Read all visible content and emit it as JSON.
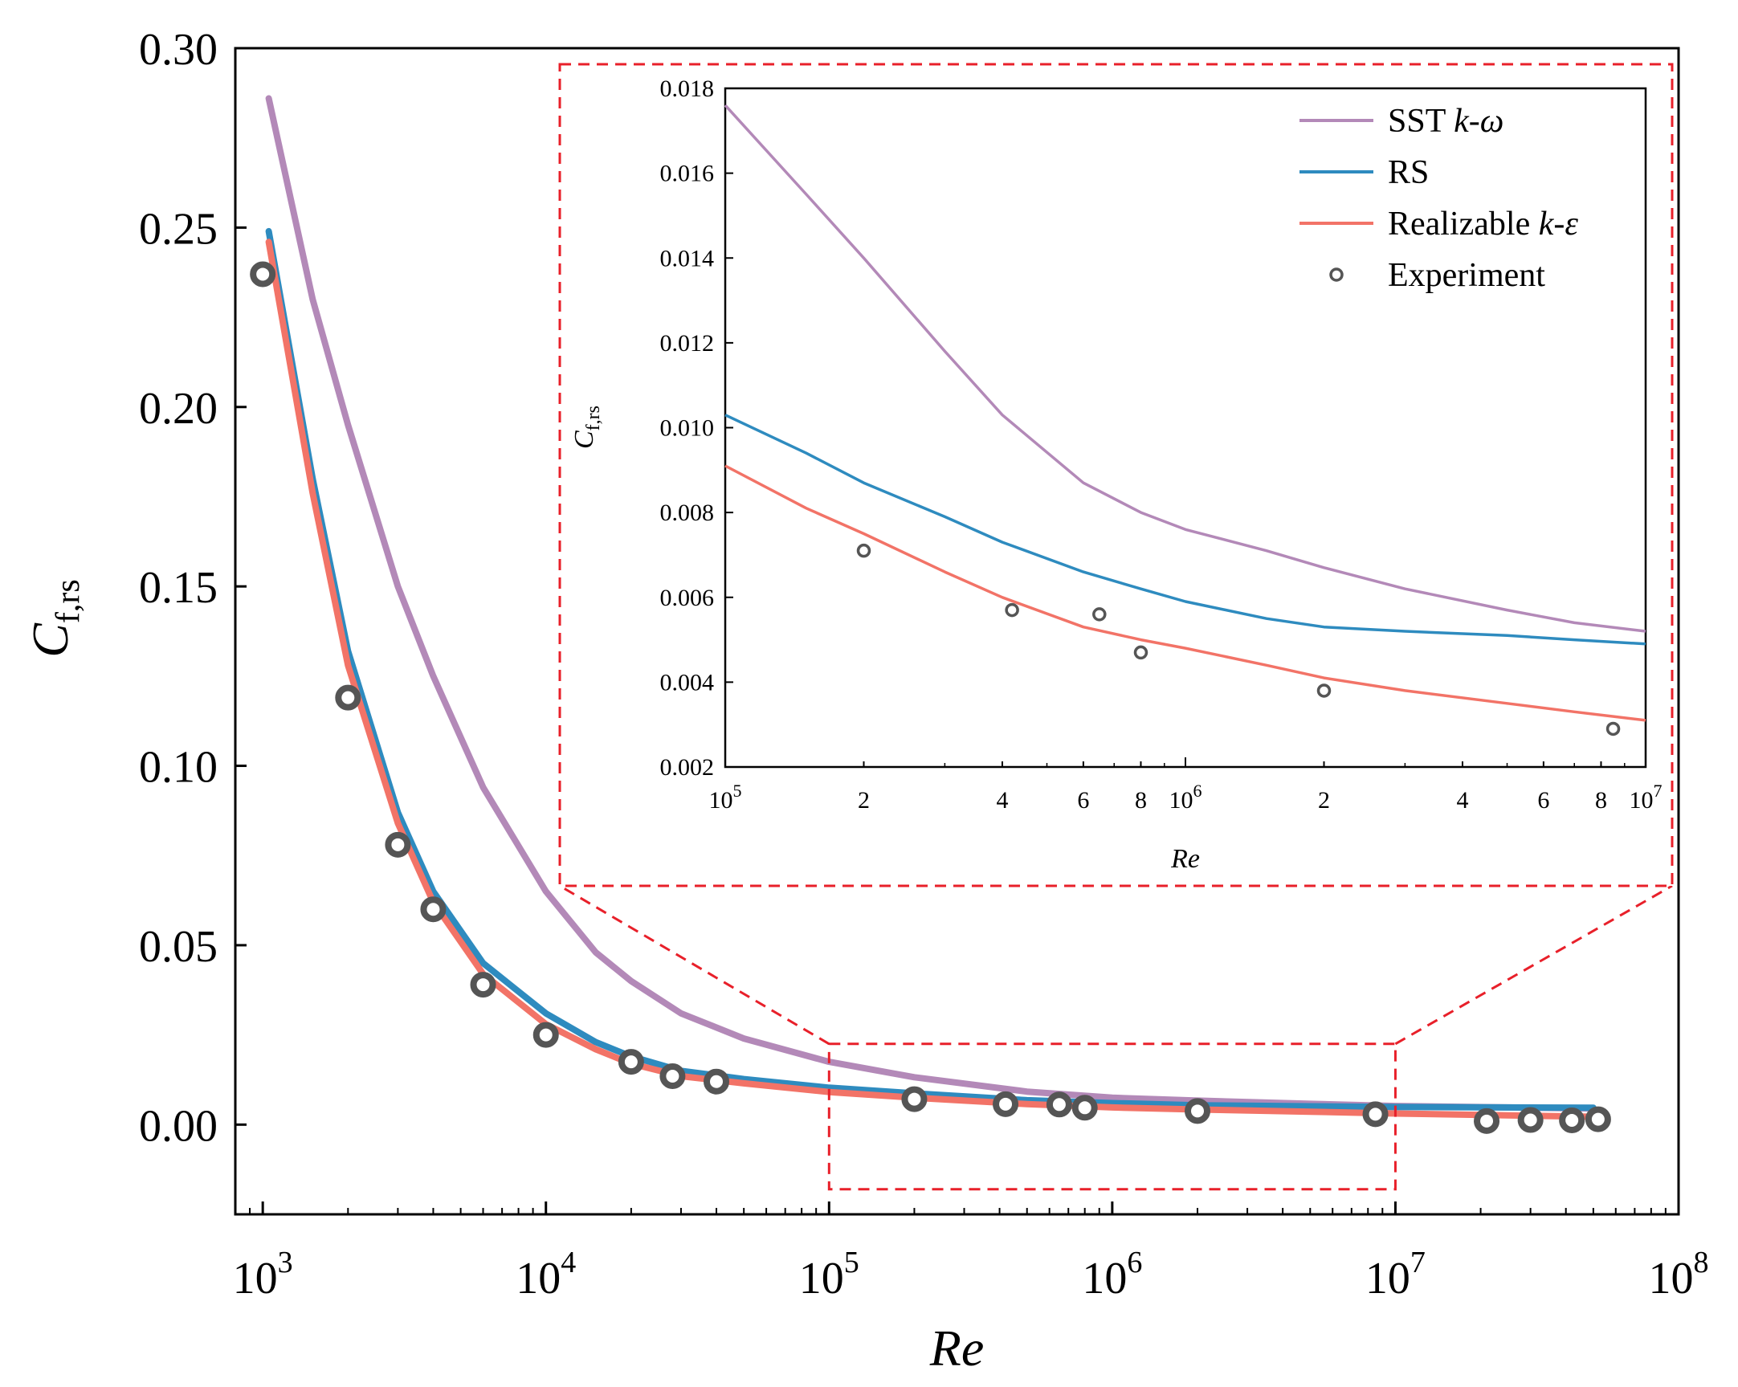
{
  "chart_data": {
    "type": "line",
    "x_scale": "log",
    "xlabel": "Re",
    "ylabel": {
      "main": "C",
      "sub": "f,rs"
    },
    "xlim": [
      800,
      100000000
    ],
    "ylim": [
      -0.025,
      0.3
    ],
    "x_ticks": [
      {
        "base": "10",
        "exp": "3",
        "value": 1000
      },
      {
        "base": "10",
        "exp": "4",
        "value": 10000
      },
      {
        "base": "10",
        "exp": "5",
        "value": 100000
      },
      {
        "base": "10",
        "exp": "6",
        "value": 1000000
      },
      {
        "base": "10",
        "exp": "7",
        "value": 10000000
      },
      {
        "base": "10",
        "exp": "8",
        "value": 100000000
      }
    ],
    "y_ticks": [
      "0.00",
      "0.05",
      "0.10",
      "0.15",
      "0.20",
      "0.25",
      "0.30"
    ],
    "series": [
      {
        "name": "SST k-ω",
        "name_parts": [
          "SST ",
          "k-ω"
        ],
        "color": "#b389b8",
        "kind": "line",
        "x": [
          1050,
          1500,
          2000,
          3000,
          4000,
          6000,
          10000,
          15000,
          20000,
          30000,
          50000,
          100000,
          200000,
          500000,
          1000000,
          2000000,
          5000000,
          10000000,
          50000000
        ],
        "y": [
          0.286,
          0.23,
          0.195,
          0.15,
          0.125,
          0.094,
          0.065,
          0.048,
          0.04,
          0.031,
          0.024,
          0.0175,
          0.0132,
          0.0092,
          0.0075,
          0.0067,
          0.0058,
          0.0052,
          0.0045
        ]
      },
      {
        "name": "RS",
        "color": "#2e8bbf",
        "kind": "line",
        "x": [
          1050,
          1500,
          2000,
          3000,
          4000,
          6000,
          10000,
          15000,
          20000,
          30000,
          50000,
          100000,
          200000,
          500000,
          1000000,
          2000000,
          5000000,
          10000000,
          50000000
        ],
        "y": [
          0.249,
          0.18,
          0.132,
          0.087,
          0.065,
          0.045,
          0.031,
          0.023,
          0.019,
          0.015,
          0.0127,
          0.0103,
          0.0087,
          0.0068,
          0.006,
          0.0054,
          0.0051,
          0.0049,
          0.0047
        ]
      },
      {
        "name": "Realizable k-ε",
        "name_parts": [
          "Realizable ",
          "k-ε"
        ],
        "color": "#f27367",
        "kind": "line",
        "x": [
          1050,
          1500,
          2000,
          3000,
          4000,
          6000,
          10000,
          15000,
          20000,
          30000,
          50000,
          100000,
          200000,
          500000,
          1000000,
          2000000,
          5000000,
          10000000,
          50000000
        ],
        "y": [
          0.246,
          0.176,
          0.128,
          0.084,
          0.062,
          0.042,
          0.028,
          0.021,
          0.017,
          0.0135,
          0.0115,
          0.0091,
          0.0075,
          0.0057,
          0.0048,
          0.0042,
          0.0036,
          0.0031,
          0.0022
        ]
      },
      {
        "name": "Experiment",
        "color": "#555555",
        "kind": "scatter",
        "x": [
          1000,
          2000,
          3000,
          4000,
          6000,
          10000,
          20000,
          28000,
          40000,
          200000,
          420000,
          650000,
          800000,
          2000000,
          8500000,
          21000000,
          30000000,
          42000000,
          52000000
        ],
        "y": [
          0.237,
          0.119,
          0.078,
          0.06,
          0.039,
          0.025,
          0.0175,
          0.0135,
          0.012,
          0.0071,
          0.0057,
          0.0056,
          0.0047,
          0.0038,
          0.0029,
          0.001,
          0.0013,
          0.0012,
          0.0015
        ]
      }
    ],
    "inset": {
      "xlabel": "Re",
      "ylabel": {
        "main": "C",
        "sub": "f,rs"
      },
      "xlim": [
        100000,
        10000000
      ],
      "ylim": [
        0.002,
        0.018
      ],
      "y_ticks": [
        "0.002",
        "0.004",
        "0.006",
        "0.008",
        "0.010",
        "0.012",
        "0.014",
        "0.016",
        "0.018"
      ],
      "x_major_ticks": [
        {
          "base": "10",
          "exp": "5",
          "value": 100000
        },
        {
          "base": "10",
          "exp": "6",
          "value": 1000000
        },
        {
          "base": "10",
          "exp": "7",
          "value": 10000000
        }
      ],
      "x_minor_labels": [
        {
          "label": "2",
          "value": 200000
        },
        {
          "label": "4",
          "value": 400000
        },
        {
          "label": "6",
          "value": 600000
        },
        {
          "label": "8",
          "value": 800000
        },
        {
          "label": "2",
          "value": 2000000
        },
        {
          "label": "4",
          "value": 4000000
        },
        {
          "label": "6",
          "value": 6000000
        },
        {
          "label": "8",
          "value": 8000000
        }
      ],
      "series": [
        {
          "name": "SST k-ω",
          "x": [
            100000,
            150000,
            200000,
            300000,
            400000,
            600000,
            800000,
            1000000,
            1500000,
            2000000,
            3000000,
            5000000,
            7000000,
            10000000
          ],
          "y": [
            0.0176,
            0.0155,
            0.014,
            0.0118,
            0.0103,
            0.0087,
            0.008,
            0.0076,
            0.0071,
            0.0067,
            0.0062,
            0.0057,
            0.0054,
            0.0052
          ]
        },
        {
          "name": "RS",
          "x": [
            100000,
            150000,
            200000,
            300000,
            400000,
            600000,
            800000,
            1000000,
            1500000,
            2000000,
            3000000,
            5000000,
            7000000,
            10000000
          ],
          "y": [
            0.0103,
            0.0094,
            0.0087,
            0.0079,
            0.0073,
            0.0066,
            0.0062,
            0.0059,
            0.0055,
            0.0053,
            0.0052,
            0.0051,
            0.005,
            0.0049
          ]
        },
        {
          "name": "Realizable k-ε",
          "x": [
            100000,
            150000,
            200000,
            300000,
            400000,
            600000,
            800000,
            1000000,
            1500000,
            2000000,
            3000000,
            5000000,
            7000000,
            10000000
          ],
          "y": [
            0.0091,
            0.0081,
            0.0075,
            0.0066,
            0.006,
            0.0053,
            0.005,
            0.0048,
            0.0044,
            0.0041,
            0.0038,
            0.0035,
            0.0033,
            0.0031
          ]
        },
        {
          "name": "Experiment",
          "x": [
            200000,
            420000,
            650000,
            800000,
            2000000,
            8500000
          ],
          "y": [
            0.0071,
            0.0057,
            0.0056,
            0.0047,
            0.0038,
            0.0029
          ]
        }
      ]
    },
    "zoom_box": {
      "x": [
        100000,
        10000000
      ],
      "y": [
        -0.018,
        0.0225
      ]
    },
    "colors": {
      "zoom_frame": "#e8202a",
      "axis": "#000000"
    }
  }
}
